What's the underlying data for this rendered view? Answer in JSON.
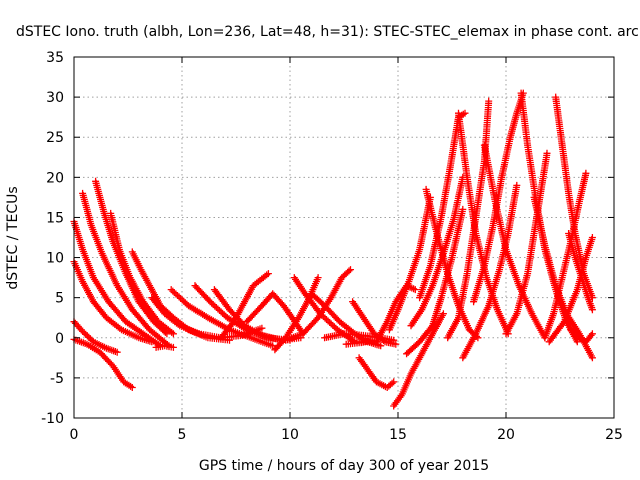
{
  "chart_data": {
    "type": "scatter",
    "title": "dSTEC Iono. truth (albh, Lon=236, Lat=48, h=31): STEC-STEC_elemax in phase cont. arc",
    "xlabel": "GPS time / hours of day 300 of year 2015",
    "ylabel": "dSTEC  / TECUs",
    "xlim": [
      0,
      25
    ],
    "ylim": [
      -10,
      35
    ],
    "x_ticks": [
      "0",
      "5",
      "10",
      "15",
      "20",
      "25"
    ],
    "y_ticks": [
      "-10",
      "-5",
      "0",
      "5",
      "10",
      "15",
      "20",
      "25",
      "30",
      "35"
    ],
    "grid": true,
    "marker": "+",
    "color": "#ff0000",
    "series": [
      {
        "points": [
          [
            0.0,
            2.0
          ],
          [
            0.4,
            0.8
          ],
          [
            0.9,
            -0.5
          ],
          [
            1.5,
            -1.3
          ],
          [
            2.0,
            -1.8
          ]
        ]
      },
      {
        "points": [
          [
            0.0,
            -0.2
          ],
          [
            0.6,
            -0.8
          ],
          [
            1.2,
            -1.8
          ],
          [
            1.8,
            -3.5
          ],
          [
            2.3,
            -5.5
          ],
          [
            2.7,
            -6.2
          ]
        ]
      },
      {
        "points": [
          [
            0.0,
            9.5
          ],
          [
            0.4,
            7.0
          ],
          [
            0.9,
            4.5
          ],
          [
            1.5,
            2.5
          ],
          [
            2.2,
            1.0
          ],
          [
            3.0,
            0.0
          ],
          [
            3.6,
            -0.5
          ]
        ]
      },
      {
        "points": [
          [
            0.0,
            14.5
          ],
          [
            0.4,
            11.0
          ],
          [
            0.9,
            7.5
          ],
          [
            1.6,
            4.5
          ],
          [
            2.4,
            2.0
          ],
          [
            3.2,
            0.5
          ],
          [
            4.0,
            -1.0
          ]
        ]
      },
      {
        "points": [
          [
            0.4,
            18.0
          ],
          [
            0.8,
            14.0
          ],
          [
            1.3,
            10.5
          ],
          [
            2.0,
            6.5
          ],
          [
            2.7,
            3.5
          ],
          [
            3.5,
            1.0
          ],
          [
            4.4,
            -1.0
          ]
        ]
      },
      {
        "points": [
          [
            1.0,
            19.5
          ],
          [
            1.4,
            15.5
          ],
          [
            1.8,
            12.0
          ],
          [
            2.4,
            8.0
          ],
          [
            3.0,
            4.5
          ],
          [
            3.7,
            2.0
          ],
          [
            4.3,
            0.5
          ]
        ]
      },
      {
        "points": [
          [
            1.7,
            15.5
          ],
          [
            2.1,
            11.0
          ],
          [
            2.6,
            7.5
          ],
          [
            3.2,
            4.5
          ],
          [
            3.9,
            2.0
          ],
          [
            4.6,
            0.5
          ]
        ]
      },
      {
        "points": [
          [
            2.7,
            10.7
          ],
          [
            3.1,
            8.5
          ],
          [
            3.5,
            6.5
          ],
          [
            4.0,
            4.0
          ],
          [
            4.6,
            2.5
          ],
          [
            5.3,
            1.0
          ],
          [
            6.2,
            0.0
          ],
          [
            7.2,
            -0.3
          ]
        ]
      },
      {
        "points": [
          [
            3.6,
            5.0
          ],
          [
            4.2,
            3.0
          ],
          [
            4.9,
            1.5
          ],
          [
            5.8,
            0.5
          ],
          [
            6.8,
            0.0
          ],
          [
            7.8,
            0.3
          ],
          [
            8.7,
            1.2
          ]
        ]
      },
      {
        "points": [
          [
            4.5,
            6.0
          ],
          [
            5.3,
            4.0
          ],
          [
            6.2,
            2.5
          ],
          [
            7.2,
            1.0
          ],
          [
            8.2,
            0.0
          ],
          [
            9.2,
            -1.0
          ]
        ]
      },
      {
        "points": [
          [
            5.6,
            6.5
          ],
          [
            6.3,
            4.5
          ],
          [
            7.1,
            2.5
          ],
          [
            8.0,
            1.0
          ],
          [
            9.0,
            0.0
          ],
          [
            10.0,
            -0.3
          ]
        ]
      },
      {
        "points": [
          [
            6.5,
            6.0
          ],
          [
            7.2,
            3.5
          ],
          [
            7.9,
            1.5
          ],
          [
            8.7,
            0.3
          ],
          [
            9.6,
            -0.3
          ],
          [
            10.5,
            0.0
          ]
        ]
      },
      {
        "points": [
          [
            6.8,
            0.0
          ],
          [
            7.4,
            2.0
          ],
          [
            7.9,
            4.5
          ],
          [
            8.3,
            6.5
          ],
          [
            9.0,
            8.0
          ]
        ]
      },
      {
        "points": [
          [
            8.0,
            2.0
          ],
          [
            8.7,
            4.0
          ],
          [
            9.2,
            5.5
          ],
          [
            9.7,
            4.0
          ],
          [
            10.1,
            2.5
          ],
          [
            10.6,
            0.5
          ]
        ]
      },
      {
        "points": [
          [
            9.3,
            -1.5
          ],
          [
            9.8,
            0.0
          ],
          [
            10.4,
            2.5
          ],
          [
            10.9,
            5.0
          ],
          [
            11.3,
            7.5
          ]
        ]
      },
      {
        "points": [
          [
            10.2,
            7.5
          ],
          [
            10.7,
            5.5
          ],
          [
            11.4,
            3.0
          ],
          [
            12.2,
            1.0
          ],
          [
            13.0,
            -0.5
          ],
          [
            14.0,
            -0.5
          ]
        ]
      },
      {
        "points": [
          [
            9.8,
            -0.3
          ],
          [
            10.6,
            0.5
          ],
          [
            11.3,
            2.5
          ],
          [
            11.9,
            5.0
          ],
          [
            12.4,
            7.5
          ],
          [
            12.8,
            8.5
          ]
        ]
      },
      {
        "points": [
          [
            11.0,
            5.5
          ],
          [
            11.6,
            4.0
          ],
          [
            12.3,
            2.0
          ],
          [
            13.0,
            0.5
          ],
          [
            13.6,
            -0.5
          ],
          [
            14.2,
            -1.0
          ]
        ]
      },
      {
        "points": [
          [
            11.6,
            0.0
          ],
          [
            12.5,
            0.5
          ],
          [
            13.4,
            0.3
          ],
          [
            14.2,
            0.0
          ],
          [
            14.8,
            -0.3
          ]
        ]
      },
      {
        "points": [
          [
            12.9,
            4.5
          ],
          [
            13.4,
            2.5
          ],
          [
            13.9,
            0.5
          ],
          [
            14.4,
            -0.5
          ],
          [
            14.9,
            -0.8
          ]
        ]
      },
      {
        "points": [
          [
            13.2,
            -2.5
          ],
          [
            13.6,
            -4.0
          ],
          [
            14.0,
            -5.5
          ],
          [
            14.5,
            -6.2
          ],
          [
            14.8,
            -5.5
          ]
        ]
      },
      {
        "points": [
          [
            14.0,
            -0.5
          ],
          [
            14.5,
            2.0
          ],
          [
            14.9,
            4.5
          ],
          [
            15.4,
            6.5
          ],
          [
            15.8,
            6.0
          ]
        ]
      },
      {
        "points": [
          [
            14.6,
            1.0
          ],
          [
            15.0,
            3.5
          ],
          [
            15.5,
            7.0
          ],
          [
            16.0,
            11.0
          ],
          [
            16.5,
            17.5
          ]
        ]
      },
      {
        "points": [
          [
            14.8,
            -8.5
          ],
          [
            15.2,
            -7.0
          ],
          [
            15.6,
            -4.5
          ],
          [
            16.1,
            -2.0
          ],
          [
            16.6,
            0.5
          ],
          [
            17.1,
            3.0
          ]
        ]
      },
      {
        "points": [
          [
            15.4,
            -2.0
          ],
          [
            16.0,
            -0.5
          ],
          [
            16.6,
            1.5
          ],
          [
            17.0,
            5.0
          ],
          [
            17.5,
            10.0
          ],
          [
            18.0,
            16.0
          ]
        ]
      },
      {
        "points": [
          [
            15.6,
            1.5
          ],
          [
            16.1,
            3.5
          ],
          [
            16.6,
            6.5
          ],
          [
            17.1,
            10.5
          ],
          [
            17.6,
            15.0
          ],
          [
            18.0,
            20.0
          ]
        ]
      },
      {
        "points": [
          [
            16.0,
            5.0
          ],
          [
            16.5,
            9.0
          ],
          [
            17.0,
            15.0
          ],
          [
            17.4,
            21.0
          ],
          [
            17.8,
            27.5
          ],
          [
            18.1,
            28.0
          ]
        ]
      },
      {
        "points": [
          [
            16.3,
            18.5
          ],
          [
            16.8,
            13.0
          ],
          [
            17.3,
            8.0
          ],
          [
            17.8,
            4.0
          ],
          [
            18.3,
            1.0
          ],
          [
            18.7,
            0.0
          ]
        ]
      },
      {
        "points": [
          [
            17.3,
            0.0
          ],
          [
            17.8,
            2.5
          ],
          [
            18.2,
            8.0
          ],
          [
            18.6,
            15.0
          ],
          [
            19.0,
            22.0
          ],
          [
            19.2,
            29.5
          ]
        ]
      },
      {
        "points": [
          [
            17.8,
            28.0
          ],
          [
            18.2,
            20.0
          ],
          [
            18.6,
            13.0
          ],
          [
            19.1,
            7.5
          ],
          [
            19.6,
            3.5
          ],
          [
            20.1,
            0.5
          ]
        ]
      },
      {
        "points": [
          [
            18.0,
            -2.5
          ],
          [
            18.6,
            0.5
          ],
          [
            19.2,
            4.0
          ],
          [
            19.7,
            8.5
          ],
          [
            20.1,
            13.0
          ],
          [
            20.5,
            19.0
          ]
        ]
      },
      {
        "points": [
          [
            18.5,
            4.5
          ],
          [
            19.0,
            9.0
          ],
          [
            19.4,
            14.0
          ],
          [
            19.8,
            20.0
          ],
          [
            20.2,
            25.0
          ],
          [
            20.5,
            28.0
          ],
          [
            20.8,
            30.5
          ]
        ]
      },
      {
        "points": [
          [
            19.0,
            24.0
          ],
          [
            19.5,
            17.0
          ],
          [
            20.0,
            11.0
          ],
          [
            20.6,
            6.5
          ],
          [
            21.2,
            3.0
          ],
          [
            21.8,
            0.0
          ]
        ]
      },
      {
        "points": [
          [
            20.0,
            0.5
          ],
          [
            20.5,
            3.0
          ],
          [
            21.0,
            8.0
          ],
          [
            21.3,
            13.0
          ],
          [
            21.6,
            18.0
          ],
          [
            21.9,
            23.0
          ]
        ]
      },
      {
        "points": [
          [
            20.7,
            30.5
          ],
          [
            21.0,
            24.0
          ],
          [
            21.4,
            17.0
          ],
          [
            21.8,
            11.0
          ],
          [
            22.3,
            6.0
          ],
          [
            22.8,
            2.0
          ],
          [
            23.3,
            -0.5
          ]
        ]
      },
      {
        "points": [
          [
            21.3,
            17.5
          ],
          [
            21.8,
            11.5
          ],
          [
            22.3,
            6.5
          ],
          [
            22.8,
            3.0
          ],
          [
            23.4,
            0.5
          ],
          [
            24.0,
            -2.5
          ]
        ]
      },
      {
        "points": [
          [
            21.8,
            0.0
          ],
          [
            22.2,
            3.0
          ],
          [
            22.6,
            7.5
          ],
          [
            23.0,
            12.0
          ],
          [
            23.4,
            17.0
          ],
          [
            23.7,
            20.5
          ]
        ]
      },
      {
        "points": [
          [
            22.3,
            30.0
          ],
          [
            22.6,
            24.0
          ],
          [
            22.9,
            18.0
          ],
          [
            23.2,
            13.0
          ],
          [
            23.6,
            8.0
          ],
          [
            24.0,
            5.0
          ]
        ]
      },
      {
        "points": [
          [
            22.0,
            -0.5
          ],
          [
            22.7,
            2.0
          ],
          [
            23.3,
            6.0
          ],
          [
            23.7,
            10.0
          ],
          [
            24.0,
            12.5
          ]
        ]
      },
      {
        "points": [
          [
            22.9,
            13.0
          ],
          [
            23.2,
            10.0
          ],
          [
            23.5,
            7.5
          ],
          [
            23.8,
            5.0
          ],
          [
            24.0,
            3.5
          ]
        ]
      },
      {
        "points": [
          [
            23.0,
            1.0
          ],
          [
            23.4,
            0.0
          ],
          [
            23.7,
            -0.5
          ],
          [
            24.0,
            0.5
          ]
        ]
      },
      {
        "points": [
          [
            12.6,
            -0.8
          ],
          [
            13.3,
            -0.6
          ],
          [
            13.8,
            -0.3
          ]
        ]
      },
      {
        "points": [
          [
            3.8,
            -1.2
          ],
          [
            4.2,
            -1.0
          ],
          [
            4.6,
            -1.2
          ]
        ]
      }
    ]
  }
}
